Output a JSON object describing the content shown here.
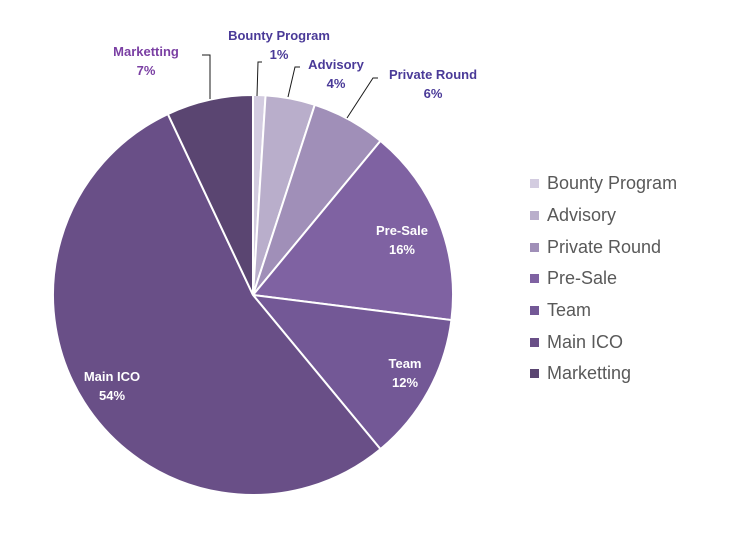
{
  "chart_data": {
    "type": "pie",
    "title": "",
    "legend_position": "right",
    "start_angle": "top, clockwise",
    "slices": [
      {
        "label": "Bounty Program",
        "value": 1,
        "pct_label": "1%",
        "color": "#d3cce0"
      },
      {
        "label": "Advisory",
        "value": 4,
        "pct_label": "4%",
        "color": "#b9aecb"
      },
      {
        "label": "Private Round",
        "value": 6,
        "pct_label": "6%",
        "color": "#a08fb8"
      },
      {
        "label": "Pre-Sale",
        "value": 16,
        "pct_label": "16%",
        "color": "#7f62a2"
      },
      {
        "label": "Team",
        "value": 12,
        "pct_label": "12%",
        "color": "#735896"
      },
      {
        "label": "Main ICO",
        "value": 54,
        "pct_label": "54%",
        "color": "#694f87"
      },
      {
        "label": "Marketting",
        "value": 7,
        "pct_label": "7%",
        "color": "#5a4571"
      }
    ]
  }
}
